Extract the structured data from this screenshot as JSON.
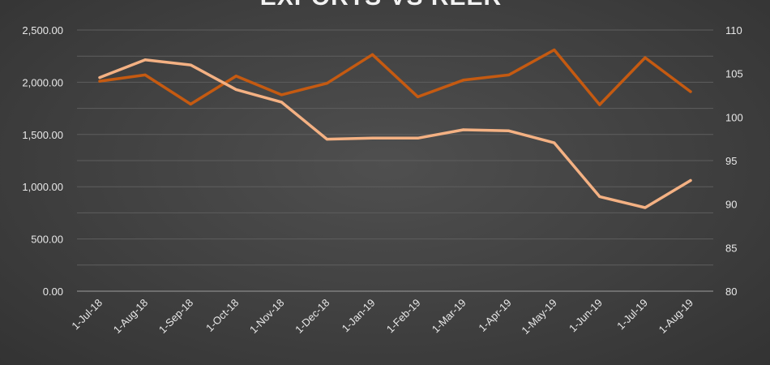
{
  "chart_data": {
    "type": "line",
    "title": "EXPORTS VS REER",
    "categories": [
      "1-Jul-18",
      "1-Aug-18",
      "1-Sep-18",
      "1-Oct-18",
      "1-Nov-18",
      "1-Dec-18",
      "1-Jan-19",
      "1-Feb-19",
      "1-Mar-19",
      "1-Apr-19",
      "1-May-19",
      "1-Jun-19",
      "1-Jul-19",
      "1-Aug-19"
    ],
    "y_left": {
      "ticks": [
        "0.00",
        "500.00",
        "1,000.00",
        "1,500.00",
        "2,000.00",
        "2,500.00"
      ],
      "ylim": [
        0,
        2500
      ]
    },
    "y_right": {
      "ticks": [
        "80",
        "85",
        "90",
        "95",
        "100",
        "105",
        "110"
      ],
      "ylim": [
        80,
        110
      ]
    },
    "grid": true,
    "legend": "none",
    "series": [
      {
        "axis": "left",
        "color": "#c55a11",
        "values": [
          2010,
          2070,
          1790,
          2060,
          1880,
          1990,
          2265,
          1860,
          2020,
          2070,
          2310,
          1785,
          2235,
          1910
        ]
      },
      {
        "axis": "left",
        "color": "#f4b183",
        "values": [
          2045,
          2215,
          2165,
          1930,
          1810,
          1455,
          1465,
          1465,
          1545,
          1535,
          1420,
          905,
          800,
          1060
        ]
      }
    ]
  }
}
